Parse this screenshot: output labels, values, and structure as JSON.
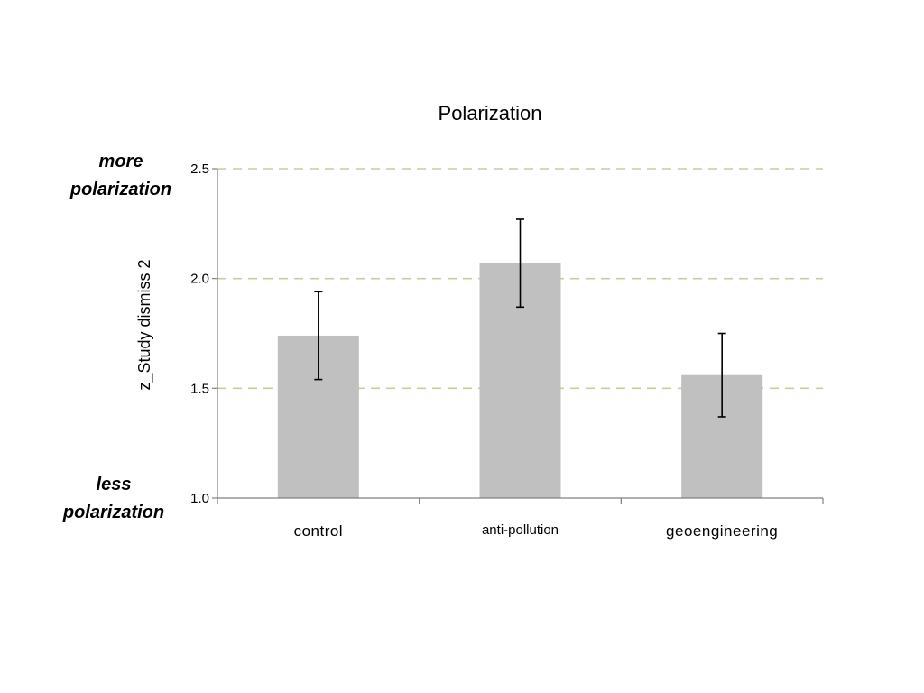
{
  "chart_data": {
    "type": "bar",
    "title": "Polarization",
    "xlabel": "",
    "ylabel": "z_Study dismiss 2",
    "categories": [
      "control",
      "anti-pollution",
      "geoengineering"
    ],
    "values": [
      1.74,
      2.07,
      1.56
    ],
    "error_low": [
      1.54,
      1.87,
      1.37
    ],
    "error_high": [
      1.94,
      2.27,
      1.75
    ],
    "ylim": [
      1.0,
      2.5
    ],
    "yticks": [
      "1.0",
      "1.5",
      "2.0",
      "2.5"
    ],
    "ytick_values": [
      1.0,
      1.5,
      2.0,
      2.5
    ],
    "grid": "horizontal dashed",
    "bar_color": "#c0c0c0",
    "grid_color": "#c4cf9a",
    "annotations": {
      "top": [
        "more",
        "polarization"
      ],
      "bottom": [
        "less",
        "polarization"
      ]
    }
  }
}
